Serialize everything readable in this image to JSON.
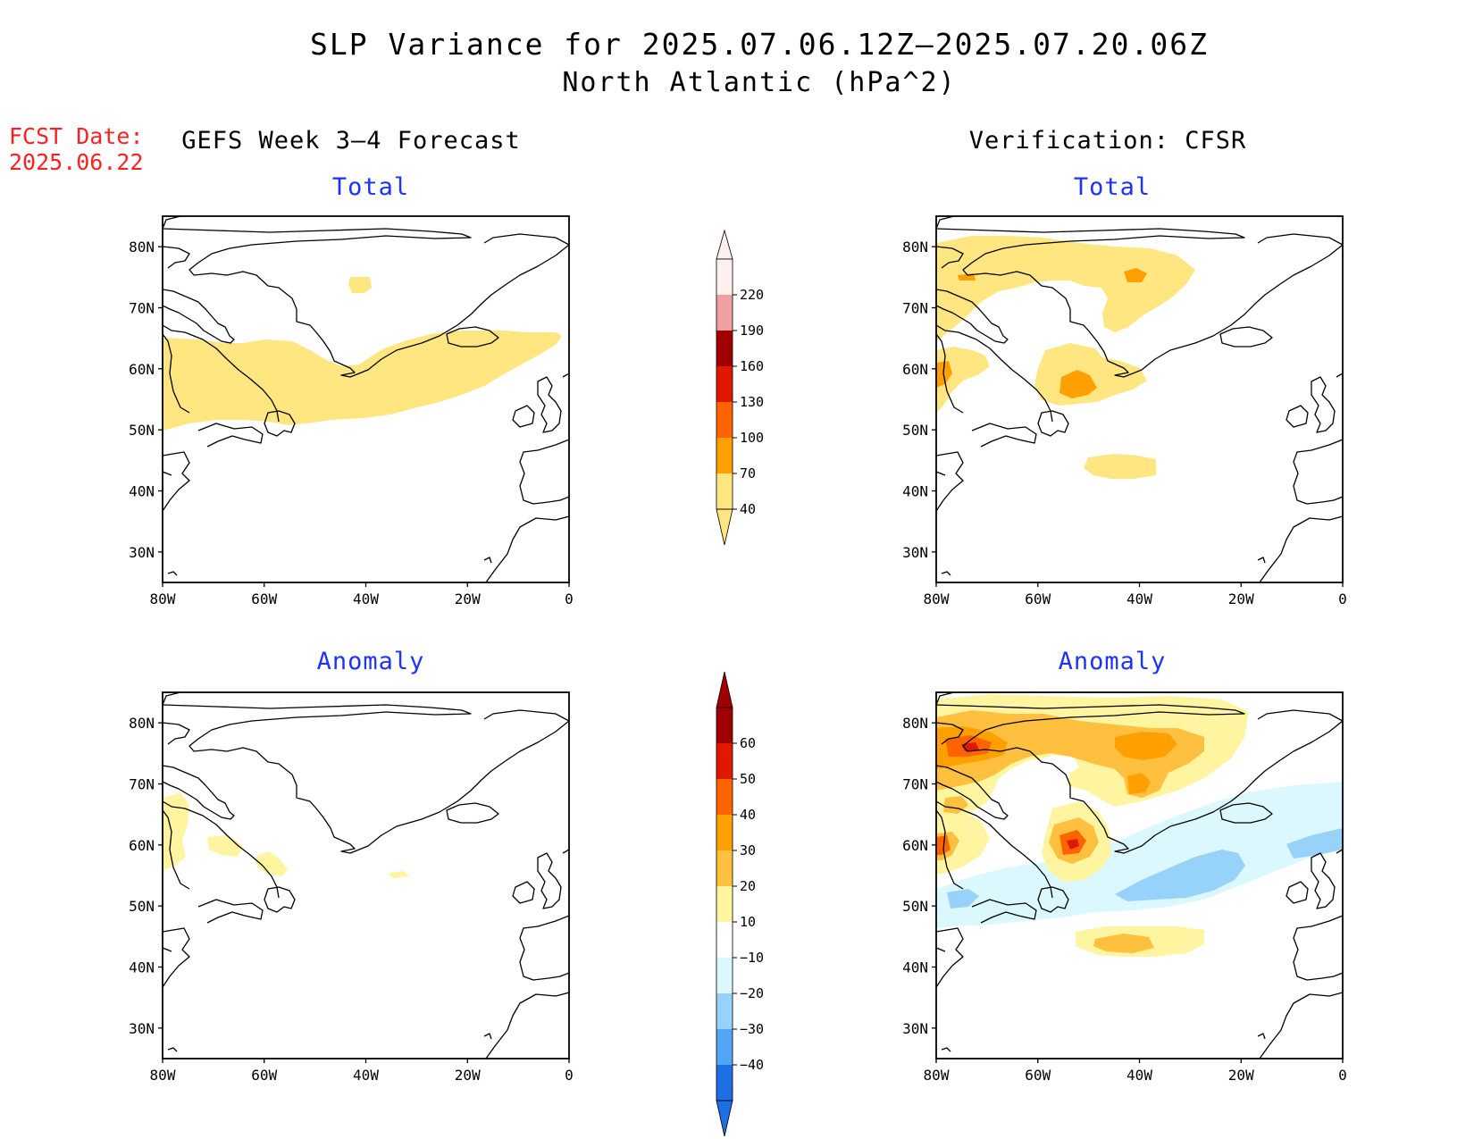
{
  "title": {
    "line1": "SLP Variance for 2025.07.06.12Z–2025.07.20.06Z",
    "line2": "North Atlantic (hPa^2)"
  },
  "fcst_date": {
    "label": "FCST Date:",
    "value": "2025.06.22"
  },
  "columns": {
    "left": "GEFS Week 3–4 Forecast",
    "right": "Verification: CFSR"
  },
  "panels": {
    "top_left": "Total",
    "top_right": "Total",
    "bottom_left": "Anomaly",
    "bottom_right": "Anomaly"
  },
  "axes": {
    "x_ticks": [
      "80W",
      "60W",
      "40W",
      "20W",
      "0"
    ],
    "y_ticks": [
      "80N",
      "70N",
      "60N",
      "50N",
      "40N",
      "30N"
    ],
    "lon_range": [
      -80,
      0
    ],
    "lat_range": [
      25,
      85
    ]
  },
  "colorbars": {
    "total": {
      "levels": [
        "220",
        "190",
        "160",
        "130",
        "100",
        "70",
        "40"
      ],
      "colors": [
        "#fff0f0",
        "#f0a0a0",
        "#a00000",
        "#e01800",
        "#ff6400",
        "#ffa000",
        "#ffe680"
      ]
    },
    "anomaly": {
      "levels": [
        "60",
        "50",
        "40",
        "30",
        "20",
        "10",
        "−10",
        "−20",
        "−30",
        "−40"
      ],
      "colors": [
        "#a00000",
        "#e01800",
        "#ff6400",
        "#ffa000",
        "#ffc040",
        "#fff5a0",
        "#ffffff",
        "#dcf8ff",
        "#96d2fa",
        "#50a5f5",
        "#1e6ee6"
      ]
    }
  },
  "map_data": {
    "region": "North Atlantic",
    "projection": "lat-lon",
    "coastlines": [
      "Greenland",
      "North America",
      "Iceland",
      "British Isles",
      "Iberia",
      "Northwest Africa"
    ]
  }
}
